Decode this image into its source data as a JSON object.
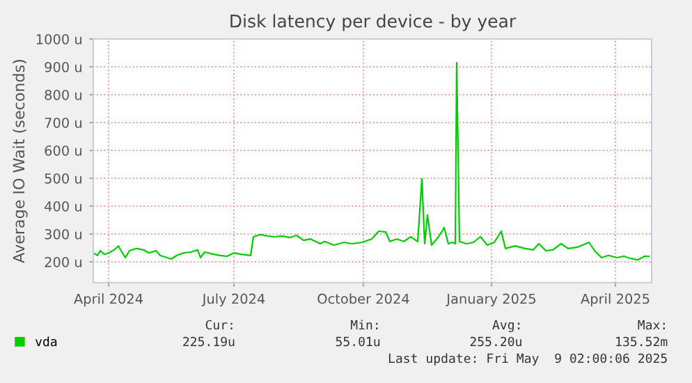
{
  "chart_data": {
    "type": "line",
    "title": "Disk latency per device - by year",
    "ylabel": "Average IO Wait (seconds)",
    "xlim": [
      "2024-04-03",
      "2025-05-09"
    ],
    "xticks": [
      {
        "value": "2024-04-14",
        "label": "April 2024"
      },
      {
        "value": "2024-07-13",
        "label": "July 2024"
      },
      {
        "value": "2024-10-14",
        "label": "October 2024"
      },
      {
        "value": "2025-01-14",
        "label": "January 2025"
      },
      {
        "value": "2025-04-13",
        "label": "April 2025"
      }
    ],
    "ylim": [
      125,
      1000
    ],
    "yticks": [
      {
        "value": 200,
        "label": "200 u"
      },
      {
        "value": 300,
        "label": "300 u"
      },
      {
        "value": 400,
        "label": "400 u"
      },
      {
        "value": 500,
        "label": "500 u"
      },
      {
        "value": 600,
        "label": "600 u"
      },
      {
        "value": 700,
        "label": "700 u"
      },
      {
        "value": 800,
        "label": "800 u"
      },
      {
        "value": 900,
        "label": "900 u"
      },
      {
        "value": 1000,
        "label": "1000 u"
      }
    ],
    "grid": true,
    "legend": "bottom left",
    "marker": "none",
    "line_style": "solid",
    "series": [
      {
        "name": "vda",
        "color": "#00cc00",
        "x": [
          "2024-04-03",
          "2024-04-06",
          "2024-04-08",
          "2024-04-11",
          "2024-04-14",
          "2024-04-18",
          "2024-04-21",
          "2024-04-23",
          "2024-04-26",
          "2024-04-29",
          "2024-05-04",
          "2024-05-09",
          "2024-05-13",
          "2024-05-18",
          "2024-05-21",
          "2024-05-24",
          "2024-05-29",
          "2024-06-02",
          "2024-06-07",
          "2024-06-12",
          "2024-06-17",
          "2024-06-19",
          "2024-06-22",
          "2024-06-28",
          "2024-07-03",
          "2024-07-08",
          "2024-07-13",
          "2024-07-18",
          "2024-07-25",
          "2024-07-27",
          "2024-08-01",
          "2024-08-06",
          "2024-08-11",
          "2024-08-17",
          "2024-08-22",
          "2024-08-27",
          "2024-09-01",
          "2024-09-06",
          "2024-09-13",
          "2024-09-16",
          "2024-09-23",
          "2024-09-30",
          "2024-10-06",
          "2024-10-13",
          "2024-10-20",
          "2024-10-25",
          "2024-10-30",
          "2024-11-02",
          "2024-11-07",
          "2024-11-12",
          "2024-11-17",
          "2024-11-22",
          "2024-11-25",
          "2024-11-27",
          "2024-11-29",
          "2024-12-02",
          "2024-12-07",
          "2024-12-11",
          "2024-12-14",
          "2024-12-17",
          "2024-12-19",
          "2024-12-20",
          "2024-12-22",
          "2024-12-27",
          "2025-01-01",
          "2025-01-06",
          "2025-01-11",
          "2025-01-16",
          "2025-01-21",
          "2025-01-24",
          "2025-01-31",
          "2025-02-07",
          "2025-02-13",
          "2025-02-17",
          "2025-02-22",
          "2025-02-27",
          "2025-03-05",
          "2025-03-10",
          "2025-03-17",
          "2025-03-25",
          "2025-03-29",
          "2025-04-03",
          "2025-04-08",
          "2025-04-14",
          "2025-04-19",
          "2025-04-24",
          "2025-04-29",
          "2025-05-04",
          "2025-05-07"
        ],
        "values": [
          232,
          223,
          240,
          227,
          232,
          243,
          257,
          240,
          215,
          240,
          248,
          243,
          232,
          240,
          223,
          218,
          210,
          223,
          232,
          235,
          243,
          215,
          235,
          228,
          223,
          220,
          232,
          227,
          223,
          290,
          298,
          293,
          290,
          293,
          287,
          295,
          277,
          282,
          265,
          273,
          260,
          270,
          265,
          270,
          282,
          310,
          307,
          273,
          282,
          273,
          290,
          273,
          498,
          265,
          368,
          260,
          290,
          323,
          265,
          270,
          265,
          915,
          273,
          265,
          270,
          290,
          260,
          270,
          310,
          248,
          257,
          248,
          243,
          265,
          240,
          243,
          265,
          248,
          253,
          270,
          240,
          215,
          223,
          215,
          220,
          212,
          207,
          220,
          220
        ]
      }
    ],
    "annotations": [
      "Cur:",
      "Min:",
      "Avg:",
      "Max:",
      "225.19u",
      "55.01u",
      "255.20u",
      "135.52m",
      "Last update: Fri May  9 02:00:06 2025"
    ]
  }
}
